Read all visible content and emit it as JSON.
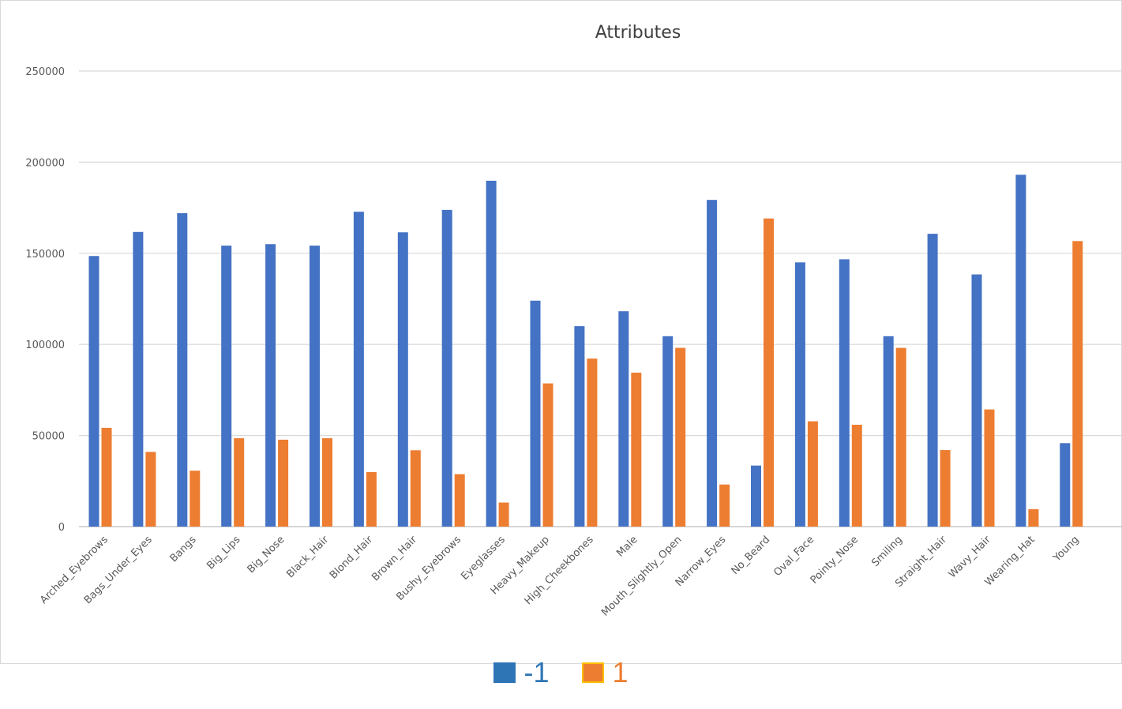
{
  "chart_data": {
    "type": "bar",
    "title": "Attributes",
    "xlabel": "",
    "ylabel": "",
    "ylim": [
      0,
      250000
    ],
    "yticks": [
      "0",
      "50000",
      "100000",
      "150000",
      "200000",
      "250000"
    ],
    "grid": true,
    "legend_position": "bottom",
    "categories": [
      "Arched_Eyebrows",
      "Bags_Under_Eyes",
      "Bangs",
      "Big_Lips",
      "Big_Nose",
      "Black_Hair",
      "Blond_Hair",
      "Brown_Hair",
      "Bushy_Eyebrows",
      "Eyeglasses",
      "Heavy_Makeup",
      "High_Cheekbones",
      "Male",
      "Mouth_Slightly_Open",
      "Narrow_Eyes",
      "No_Beard",
      "Oval_Face",
      "Pointy_Nose",
      "Smiling",
      "Straight_Hair",
      "Wavy_Hair",
      "Wearing_Hat",
      "Young"
    ],
    "series": [
      {
        "name": "-1",
        "color": "#4472c4",
        "values": [
          148500,
          161700,
          172000,
          154200,
          155000,
          154200,
          172800,
          161500,
          173800,
          189800,
          124000,
          110000,
          118200,
          104500,
          179300,
          33500,
          145000,
          146700,
          104500,
          160700,
          138400,
          193100,
          45800
        ]
      },
      {
        "name": "1",
        "color": "#ed7d31",
        "values": [
          54200,
          41000,
          30700,
          48500,
          47700,
          48500,
          29900,
          41900,
          28800,
          13200,
          78600,
          92200,
          84500,
          98100,
          23100,
          169100,
          57800,
          55900,
          98100,
          42000,
          64300,
          9600,
          156700
        ]
      }
    ]
  },
  "legend": {
    "items": [
      {
        "label": "-1",
        "color": "#2e75b6",
        "text_color": "#2e75b6"
      },
      {
        "label": "1",
        "color": "#ed7d31",
        "text_color": "#ed7d31",
        "border": "#ffc000"
      }
    ]
  }
}
